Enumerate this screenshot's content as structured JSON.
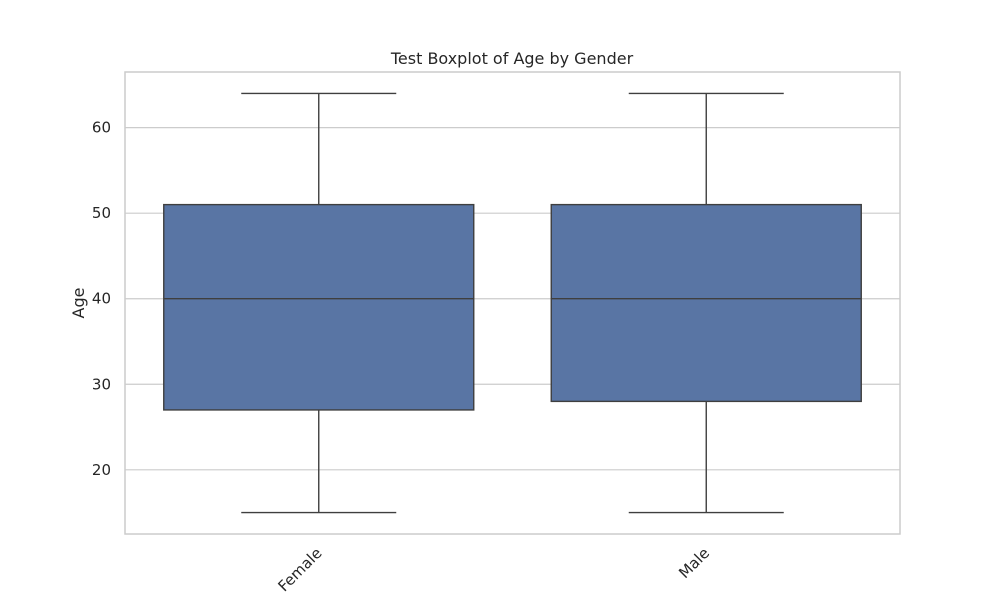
{
  "chart_data": {
    "type": "boxplot",
    "title": "Test Boxplot of Age by Gender",
    "xlabel": "",
    "ylabel": "Age",
    "ylim": [
      12.5,
      66.5
    ],
    "yticks": [
      20,
      30,
      40,
      50,
      60
    ],
    "grid": true,
    "box_color": "#5975a4",
    "categories": [
      "Female",
      "Male"
    ],
    "boxes": [
      {
        "category": "Female",
        "whisker_low": 15,
        "q1": 27,
        "median": 40,
        "q3": 51,
        "whisker_high": 64
      },
      {
        "category": "Male",
        "whisker_low": 15,
        "q1": 28,
        "median": 40,
        "q3": 51,
        "whisker_high": 64
      }
    ]
  }
}
